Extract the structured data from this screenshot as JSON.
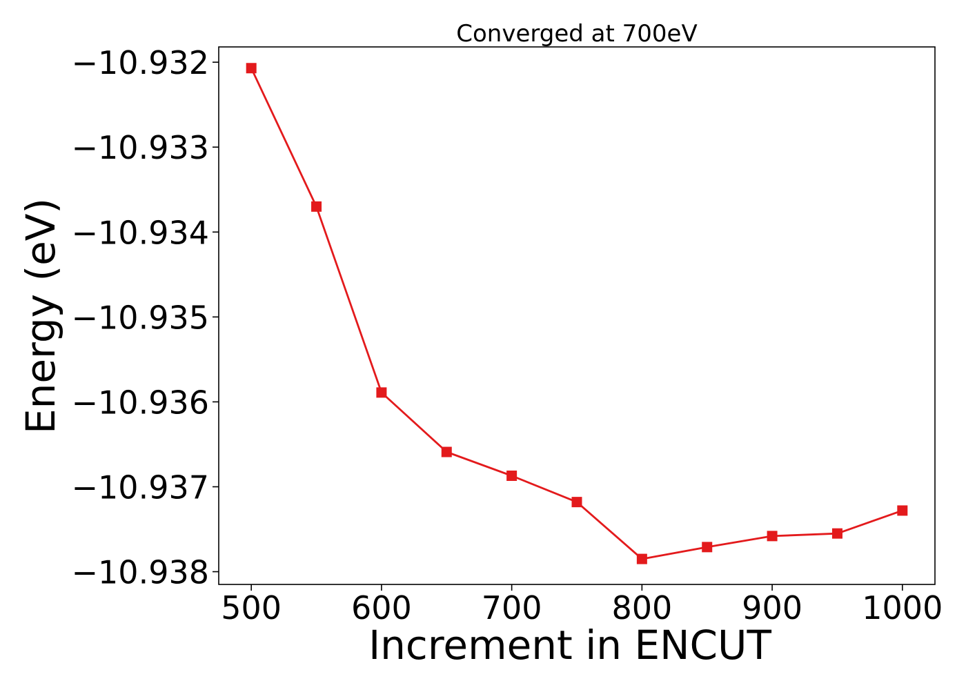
{
  "chart_data": {
    "type": "line",
    "title": "Converged at 700eV",
    "xlabel": "Increment in ENCUT",
    "ylabel": "Energy (eV)",
    "xlim": [
      475,
      1025
    ],
    "ylim": [
      -10.93815,
      -10.93182
    ],
    "xticks": [
      500,
      600,
      700,
      800,
      900,
      1000
    ],
    "xtick_labels": [
      "500",
      "600",
      "700",
      "800",
      "900",
      "1000"
    ],
    "yticks": [
      -10.932,
      -10.933,
      -10.934,
      -10.935,
      -10.936,
      -10.937,
      -10.938
    ],
    "ytick_labels": [
      "−10.932",
      "−10.933",
      "−10.934",
      "−10.935",
      "−10.936",
      "−10.937",
      "−10.938"
    ],
    "grid": false,
    "legend": false,
    "marker": "square",
    "series_color": "#e31a1c",
    "x": [
      500,
      550,
      600,
      650,
      700,
      750,
      800,
      850,
      900,
      950,
      1000
    ],
    "y": [
      -10.93207,
      -10.9337,
      -10.93589,
      -10.93659,
      -10.93687,
      -10.93718,
      -10.93785,
      -10.93771,
      -10.93758,
      -10.93755,
      -10.93728
    ]
  }
}
